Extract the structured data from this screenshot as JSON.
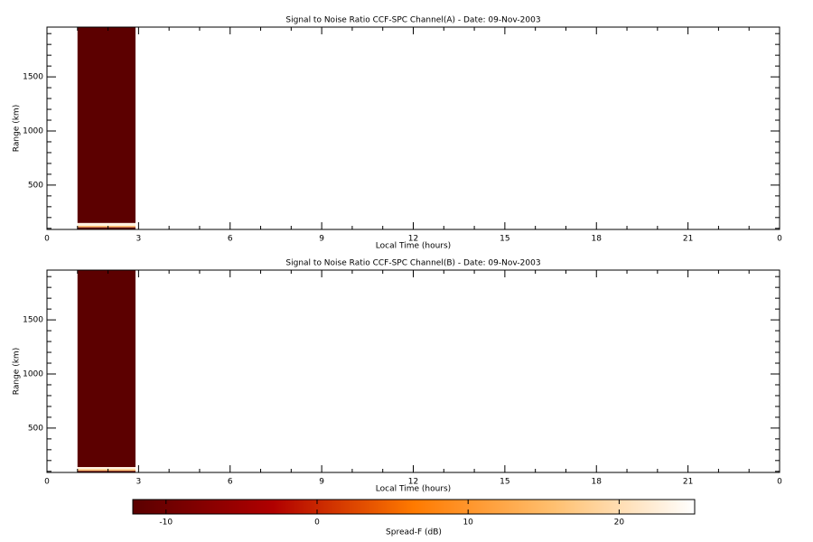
{
  "chart_data": [
    {
      "type": "heatmap",
      "title": "Signal to Noise Ratio CCF-SPC Channel(A) - Date: 09-Nov-2003",
      "xlabel": "Local Time (hours)",
      "ylabel": "Range (km)",
      "xlim": [
        0,
        24
      ],
      "xticks": [
        0,
        3,
        6,
        9,
        12,
        15,
        18,
        21,
        {
          "value": 24,
          "label": "0"
        }
      ],
      "ylim": [
        90,
        1960
      ],
      "yticks": [
        500,
        1000,
        1500
      ],
      "x_edges": [
        1.0,
        2.9
      ],
      "y_edges": [
        90,
        110,
        125,
        150,
        1960
      ],
      "values": [
        [
          -12
        ],
        [
          16
        ],
        [
          23
        ],
        [
          -12
        ]
      ]
    },
    {
      "type": "heatmap",
      "title": "Signal to Noise Ratio CCF-SPC Channel(B) - Date: 09-Nov-2003",
      "xlabel": "Local Time (hours)",
      "ylabel": "Range (km)",
      "xlim": [
        0,
        24
      ],
      "xticks": [
        0,
        3,
        6,
        9,
        12,
        15,
        18,
        21,
        {
          "value": 24,
          "label": "0"
        }
      ],
      "ylim": [
        90,
        1960
      ],
      "yticks": [
        500,
        1000,
        1500
      ],
      "x_edges": [
        1.0,
        2.9
      ],
      "y_edges": [
        90,
        105,
        120,
        140,
        1960
      ],
      "values": [
        [
          -12
        ],
        [
          16
        ],
        [
          23
        ],
        [
          -12
        ]
      ]
    },
    {
      "type": "colorbar",
      "xlabel": "Spread-F (dB)",
      "xlim": [
        -12.2,
        25
      ],
      "xticks": [
        -10,
        0,
        10,
        20
      ],
      "colors": [
        "#5a0000",
        "#b00000",
        "#ff7a00",
        "#ffc070",
        "#ffffff"
      ]
    }
  ]
}
